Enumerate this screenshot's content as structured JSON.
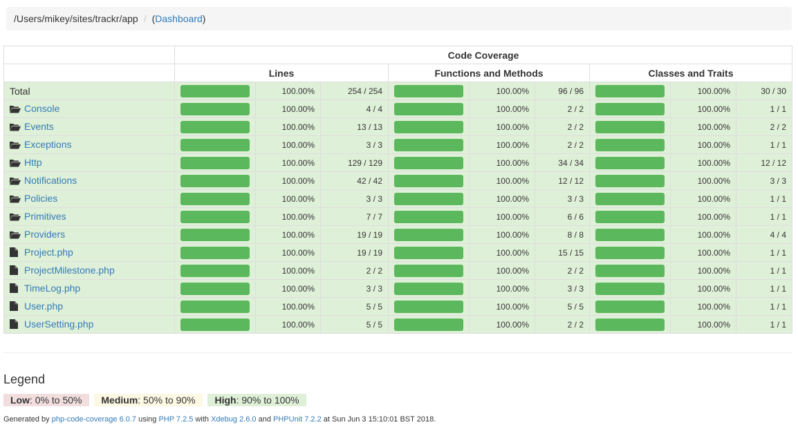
{
  "breadcrumb": {
    "path": "/Users/mikey/sites/trackr/app",
    "separator": "/",
    "open": "(",
    "link": "Dashboard",
    "close": ")"
  },
  "table": {
    "group_header": "Code Coverage",
    "columns": [
      "Lines",
      "Functions and Methods",
      "Classes and Traits"
    ],
    "colors": {
      "high_bg": "#dff0d8",
      "bar": "#5cb85c"
    },
    "rows": [
      {
        "name": "Total",
        "type": "total",
        "lines": [
          "100.00%",
          "254 / 254"
        ],
        "functions": [
          "100.00%",
          "96 / 96"
        ],
        "classes": [
          "100.00%",
          "30 / 30"
        ]
      },
      {
        "name": "Console",
        "type": "folder",
        "lines": [
          "100.00%",
          "4 / 4"
        ],
        "functions": [
          "100.00%",
          "2 / 2"
        ],
        "classes": [
          "100.00%",
          "1 / 1"
        ]
      },
      {
        "name": "Events",
        "type": "folder",
        "lines": [
          "100.00%",
          "13 / 13"
        ],
        "functions": [
          "100.00%",
          "2 / 2"
        ],
        "classes": [
          "100.00%",
          "2 / 2"
        ]
      },
      {
        "name": "Exceptions",
        "type": "folder",
        "lines": [
          "100.00%",
          "3 / 3"
        ],
        "functions": [
          "100.00%",
          "2 / 2"
        ],
        "classes": [
          "100.00%",
          "1 / 1"
        ]
      },
      {
        "name": "Http",
        "type": "folder",
        "lines": [
          "100.00%",
          "129 / 129"
        ],
        "functions": [
          "100.00%",
          "34 / 34"
        ],
        "classes": [
          "100.00%",
          "12 / 12"
        ]
      },
      {
        "name": "Notifications",
        "type": "folder",
        "lines": [
          "100.00%",
          "42 / 42"
        ],
        "functions": [
          "100.00%",
          "12 / 12"
        ],
        "classes": [
          "100.00%",
          "3 / 3"
        ]
      },
      {
        "name": "Policies",
        "type": "folder",
        "lines": [
          "100.00%",
          "3 / 3"
        ],
        "functions": [
          "100.00%",
          "3 / 3"
        ],
        "classes": [
          "100.00%",
          "1 / 1"
        ]
      },
      {
        "name": "Primitives",
        "type": "folder",
        "lines": [
          "100.00%",
          "7 / 7"
        ],
        "functions": [
          "100.00%",
          "6 / 6"
        ],
        "classes": [
          "100.00%",
          "1 / 1"
        ]
      },
      {
        "name": "Providers",
        "type": "folder",
        "lines": [
          "100.00%",
          "19 / 19"
        ],
        "functions": [
          "100.00%",
          "8 / 8"
        ],
        "classes": [
          "100.00%",
          "4 / 4"
        ]
      },
      {
        "name": "Project.php",
        "type": "file",
        "lines": [
          "100.00%",
          "19 / 19"
        ],
        "functions": [
          "100.00%",
          "15 / 15"
        ],
        "classes": [
          "100.00%",
          "1 / 1"
        ]
      },
      {
        "name": "ProjectMilestone.php",
        "type": "file",
        "lines": [
          "100.00%",
          "2 / 2"
        ],
        "functions": [
          "100.00%",
          "2 / 2"
        ],
        "classes": [
          "100.00%",
          "1 / 1"
        ]
      },
      {
        "name": "TimeLog.php",
        "type": "file",
        "lines": [
          "100.00%",
          "3 / 3"
        ],
        "functions": [
          "100.00%",
          "3 / 3"
        ],
        "classes": [
          "100.00%",
          "1 / 1"
        ]
      },
      {
        "name": "User.php",
        "type": "file",
        "lines": [
          "100.00%",
          "5 / 5"
        ],
        "functions": [
          "100.00%",
          "5 / 5"
        ],
        "classes": [
          "100.00%",
          "1 / 1"
        ]
      },
      {
        "name": "UserSetting.php",
        "type": "file",
        "lines": [
          "100.00%",
          "5 / 5"
        ],
        "functions": [
          "100.00%",
          "2 / 2"
        ],
        "classes": [
          "100.00%",
          "1 / 1"
        ]
      }
    ]
  },
  "legend": {
    "title": "Legend",
    "items": [
      {
        "label": "Low",
        "range": ": 0% to 50%",
        "color": "#f2dede"
      },
      {
        "label": "Medium",
        "range": ": 50% to 90%",
        "color": "#fcf8e3"
      },
      {
        "label": "High",
        "range": ": 90% to 100%",
        "color": "#dff0d8"
      }
    ]
  },
  "footer": {
    "t1": "Generated by ",
    "l1": "php-code-coverage 6.0.7",
    "t2": " using ",
    "l2": "PHP 7.2.5",
    "t3": " with ",
    "l3": "Xdebug 2.6.0",
    "t4": " and ",
    "l4": "PHPUnit 7.2.2",
    "t5": " at Sun Jun 3 15:10:01 BST 2018."
  }
}
